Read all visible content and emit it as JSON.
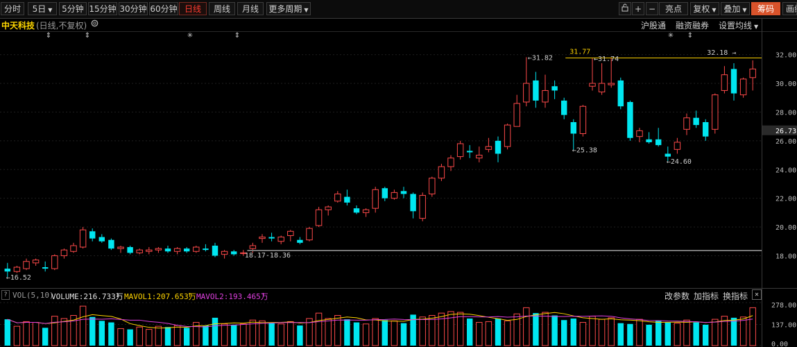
{
  "toolbar": {
    "periods": [
      "分时",
      "5日",
      "5分钟",
      "15分钟",
      "30分钟",
      "60分钟",
      "日线",
      "周线",
      "月线",
      "更多周期"
    ],
    "active_period": "日线",
    "right_buttons": [
      "亮点",
      "复权",
      "叠加",
      "筹码",
      "画线"
    ],
    "highlight_button": "筹码"
  },
  "header": {
    "stock_name": "中天科技",
    "mode": "(日线,不复权)",
    "links": [
      "沪股通",
      "融资融券",
      "设置均线"
    ]
  },
  "price_axis": {
    "ticks": [
      "32.00",
      "30.00",
      "28.00",
      "26.00",
      "24.00",
      "22.00",
      "20.00",
      "18.00"
    ],
    "current_price": "26.73",
    "current_price_color": "#ffffff"
  },
  "annotations": {
    "low_label": "16.52",
    "range_label": "18.17-18.36",
    "high1_label": "31.82",
    "high2_label": "31.74",
    "max_label": "31.77",
    "low2_label": "25.38",
    "low3_label": "24.60",
    "top_label": "32.18"
  },
  "volume_header": {
    "name": "VOL(5,10)",
    "volume": "VOLUME:216.733万",
    "mavol1": "MAVOL1:207.653万",
    "mavol2": "MAVOL2:193.465万",
    "actions": [
      "改参数",
      "加指标",
      "换指标"
    ]
  },
  "volume_axis": {
    "ticks": [
      "278.00",
      "137.00",
      "0.00"
    ]
  },
  "colors": {
    "up": "#ff4a4a",
    "down": "#00e6f0",
    "highlight": "#d9532b",
    "ma1": "#ffd400",
    "ma2": "#e040e0"
  },
  "chart_data": {
    "type": "candlestick",
    "x": [
      "1",
      "2",
      "3",
      "4",
      "5",
      "6",
      "7",
      "8",
      "9",
      "10",
      "11",
      "12",
      "13",
      "14",
      "15",
      "16",
      "17",
      "18",
      "19",
      "20",
      "21",
      "22",
      "23",
      "24",
      "25",
      "26",
      "27",
      "28",
      "29",
      "30",
      "31",
      "32",
      "33",
      "34",
      "35",
      "36",
      "37",
      "38",
      "39",
      "40",
      "41",
      "42",
      "43",
      "44",
      "45",
      "46",
      "47",
      "48",
      "49",
      "50",
      "51",
      "52",
      "53",
      "54",
      "55",
      "56",
      "57",
      "58",
      "59",
      "60",
      "61",
      "62",
      "63",
      "64",
      "65",
      "66",
      "67",
      "68",
      "69",
      "70",
      "71",
      "72",
      "73",
      "74",
      "75",
      "76",
      "77",
      "78",
      "79",
      "80"
    ],
    "ohlc": [
      [
        17.1,
        17.5,
        16.52,
        16.9
      ],
      [
        16.9,
        17.3,
        16.8,
        17.2
      ],
      [
        17.1,
        17.8,
        17.0,
        17.6
      ],
      [
        17.5,
        17.8,
        17.3,
        17.7
      ],
      [
        17.2,
        17.6,
        16.9,
        17.1
      ],
      [
        17.1,
        18.1,
        17.0,
        18.0
      ],
      [
        18.0,
        18.5,
        17.8,
        18.4
      ],
      [
        18.3,
        18.9,
        18.2,
        18.7
      ],
      [
        18.6,
        20.0,
        18.5,
        19.8
      ],
      [
        19.7,
        19.9,
        19.0,
        19.2
      ],
      [
        19.3,
        19.5,
        18.9,
        19.0
      ],
      [
        19.1,
        19.2,
        18.4,
        18.5
      ],
      [
        18.5,
        18.7,
        18.2,
        18.6
      ],
      [
        18.6,
        18.7,
        18.1,
        18.2
      ],
      [
        18.2,
        18.5,
        18.1,
        18.4
      ],
      [
        18.3,
        18.6,
        18.1,
        18.4
      ],
      [
        18.4,
        18.6,
        18.2,
        18.5
      ],
      [
        18.5,
        18.7,
        18.2,
        18.3
      ],
      [
        18.3,
        18.6,
        18.1,
        18.5
      ],
      [
        18.5,
        18.6,
        18.2,
        18.3
      ],
      [
        18.3,
        18.7,
        18.2,
        18.6
      ],
      [
        18.5,
        18.8,
        18.3,
        18.4
      ],
      [
        18.7,
        18.9,
        17.9,
        18.0
      ],
      [
        18.1,
        18.4,
        17.8,
        18.3
      ],
      [
        18.3,
        18.4,
        18.0,
        18.1
      ],
      [
        18.2,
        18.4,
        18.0,
        18.2
      ],
      [
        18.5,
        18.9,
        18.2,
        18.7
      ],
      [
        19.2,
        19.5,
        18.9,
        19.3
      ],
      [
        19.3,
        19.6,
        19.0,
        19.2
      ],
      [
        19.0,
        19.4,
        18.8,
        19.3
      ],
      [
        19.4,
        19.8,
        19.0,
        19.7
      ],
      [
        19.1,
        19.3,
        18.8,
        18.9
      ],
      [
        19.1,
        20.0,
        19.0,
        19.9
      ],
      [
        20.1,
        21.4,
        20.0,
        21.2
      ],
      [
        21.2,
        21.5,
        20.8,
        21.4
      ],
      [
        21.8,
        22.5,
        21.7,
        22.3
      ],
      [
        22.1,
        22.6,
        21.5,
        21.7
      ],
      [
        21.3,
        21.5,
        20.9,
        21.0
      ],
      [
        21.0,
        21.3,
        20.7,
        21.2
      ],
      [
        21.3,
        22.8,
        21.0,
        22.6
      ],
      [
        22.7,
        22.8,
        21.8,
        22.0
      ],
      [
        22.0,
        22.6,
        21.9,
        22.4
      ],
      [
        22.5,
        22.8,
        22.0,
        22.3
      ],
      [
        22.3,
        22.4,
        20.6,
        21.1
      ],
      [
        20.6,
        22.4,
        20.4,
        22.2
      ],
      [
        22.3,
        23.5,
        22.1,
        23.4
      ],
      [
        23.4,
        24.4,
        23.2,
        24.2
      ],
      [
        24.2,
        25.0,
        23.9,
        24.8
      ],
      [
        24.9,
        26.0,
        24.7,
        25.8
      ],
      [
        25.3,
        25.7,
        24.8,
        25.2
      ],
      [
        24.8,
        25.6,
        24.5,
        25.0
      ],
      [
        25.4,
        26.2,
        25.2,
        25.6
      ],
      [
        26.0,
        26.3,
        24.5,
        25.1
      ],
      [
        25.6,
        27.2,
        25.4,
        27.1
      ],
      [
        27.0,
        29.2,
        27.0,
        28.6
      ],
      [
        28.7,
        31.82,
        28.4,
        30.0
      ],
      [
        30.2,
        30.8,
        28.3,
        28.8
      ],
      [
        28.7,
        30.6,
        28.3,
        29.5
      ],
      [
        29.8,
        30.2,
        28.9,
        29.5
      ],
      [
        28.8,
        29.0,
        27.5,
        27.8
      ],
      [
        27.3,
        27.5,
        25.38,
        26.5
      ],
      [
        26.5,
        28.5,
        26.3,
        28.4
      ],
      [
        29.8,
        31.74,
        29.5,
        30.0
      ],
      [
        29.4,
        31.4,
        29.2,
        30.0
      ],
      [
        29.9,
        31.8,
        29.7,
        30.0
      ],
      [
        30.2,
        30.4,
        28.2,
        28.4
      ],
      [
        28.7,
        28.8,
        26.0,
        26.2
      ],
      [
        26.3,
        26.9,
        25.9,
        26.7
      ],
      [
        26.1,
        26.6,
        25.8,
        25.9
      ],
      [
        26.1,
        26.9,
        25.6,
        25.7
      ],
      [
        25.1,
        25.6,
        24.6,
        24.9
      ],
      [
        25.4,
        26.2,
        25.1,
        25.9
      ],
      [
        26.8,
        27.9,
        26.4,
        27.6
      ],
      [
        27.6,
        28.1,
        26.9,
        27.1
      ],
      [
        27.3,
        27.5,
        26.0,
        26.3
      ],
      [
        26.8,
        29.3,
        26.5,
        29.2
      ],
      [
        29.5,
        31.2,
        29.3,
        30.6
      ],
      [
        31.0,
        31.4,
        28.8,
        29.3
      ],
      [
        29.2,
        30.4,
        29.0,
        30.3
      ],
      [
        30.4,
        31.6,
        29.5,
        31.0
      ]
    ],
    "volume": [
      170,
      125,
      155,
      150,
      115,
      190,
      175,
      195,
      255,
      185,
      160,
      150,
      110,
      105,
      120,
      105,
      125,
      120,
      130,
      115,
      150,
      130,
      180,
      140,
      135,
      140,
      165,
      160,
      145,
      140,
      155,
      130,
      175,
      210,
      175,
      195,
      170,
      150,
      140,
      175,
      165,
      160,
      145,
      200,
      185,
      195,
      210,
      220,
      215,
      175,
      150,
      155,
      175,
      160,
      205,
      245,
      210,
      215,
      195,
      165,
      175,
      150,
      190,
      170,
      180,
      145,
      140,
      170,
      135,
      160,
      150,
      145,
      165,
      150,
      135,
      170,
      190,
      180,
      185,
      245
    ],
    "ylim": [
      15.8,
      33.0
    ],
    "volume_ylim": [
      0,
      278
    ]
  }
}
